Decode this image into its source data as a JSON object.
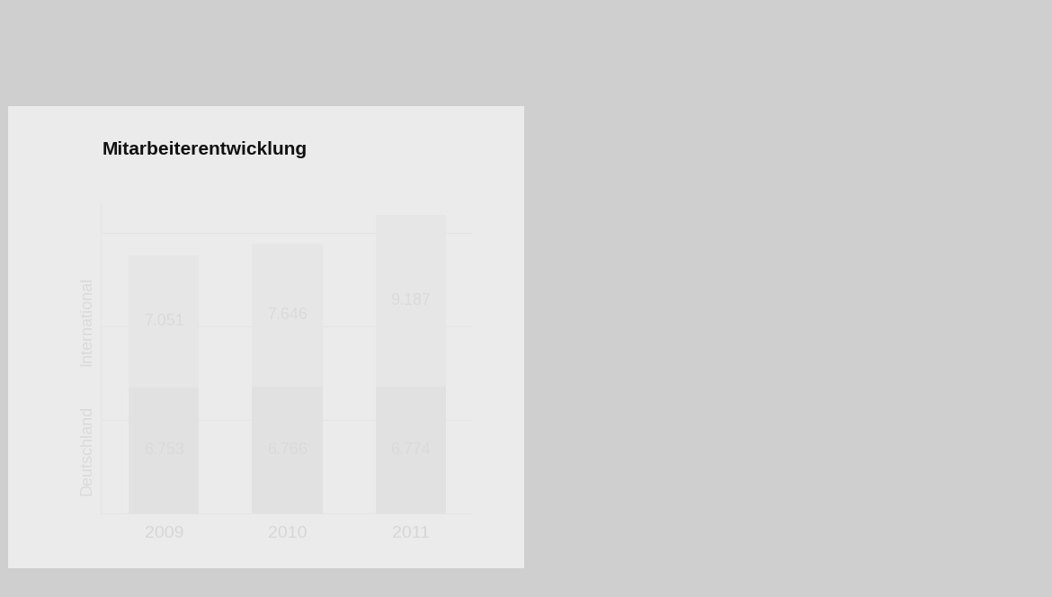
{
  "chart_data": {
    "type": "bar",
    "title": "Mitarbeiterentwicklung",
    "categories": [
      "2009",
      "2010",
      "2011"
    ],
    "stacked": true,
    "data_labels": true,
    "grid": true,
    "tick_labels": "x",
    "ylim": [
      0,
      16500
    ],
    "yticks": [
      0,
      5000,
      10000,
      15000
    ],
    "series": [
      {
        "name": "Deutschland",
        "color": "#666666",
        "values": [
          6753,
          6766,
          6774
        ],
        "value_labels": [
          "6.753",
          "6.766",
          "6.774"
        ]
      },
      {
        "name": "International",
        "color": "#9e9e9e",
        "values": [
          7051,
          7646,
          9187
        ],
        "value_labels": [
          "7.051",
          "7.646",
          "9.187"
        ]
      }
    ]
  }
}
